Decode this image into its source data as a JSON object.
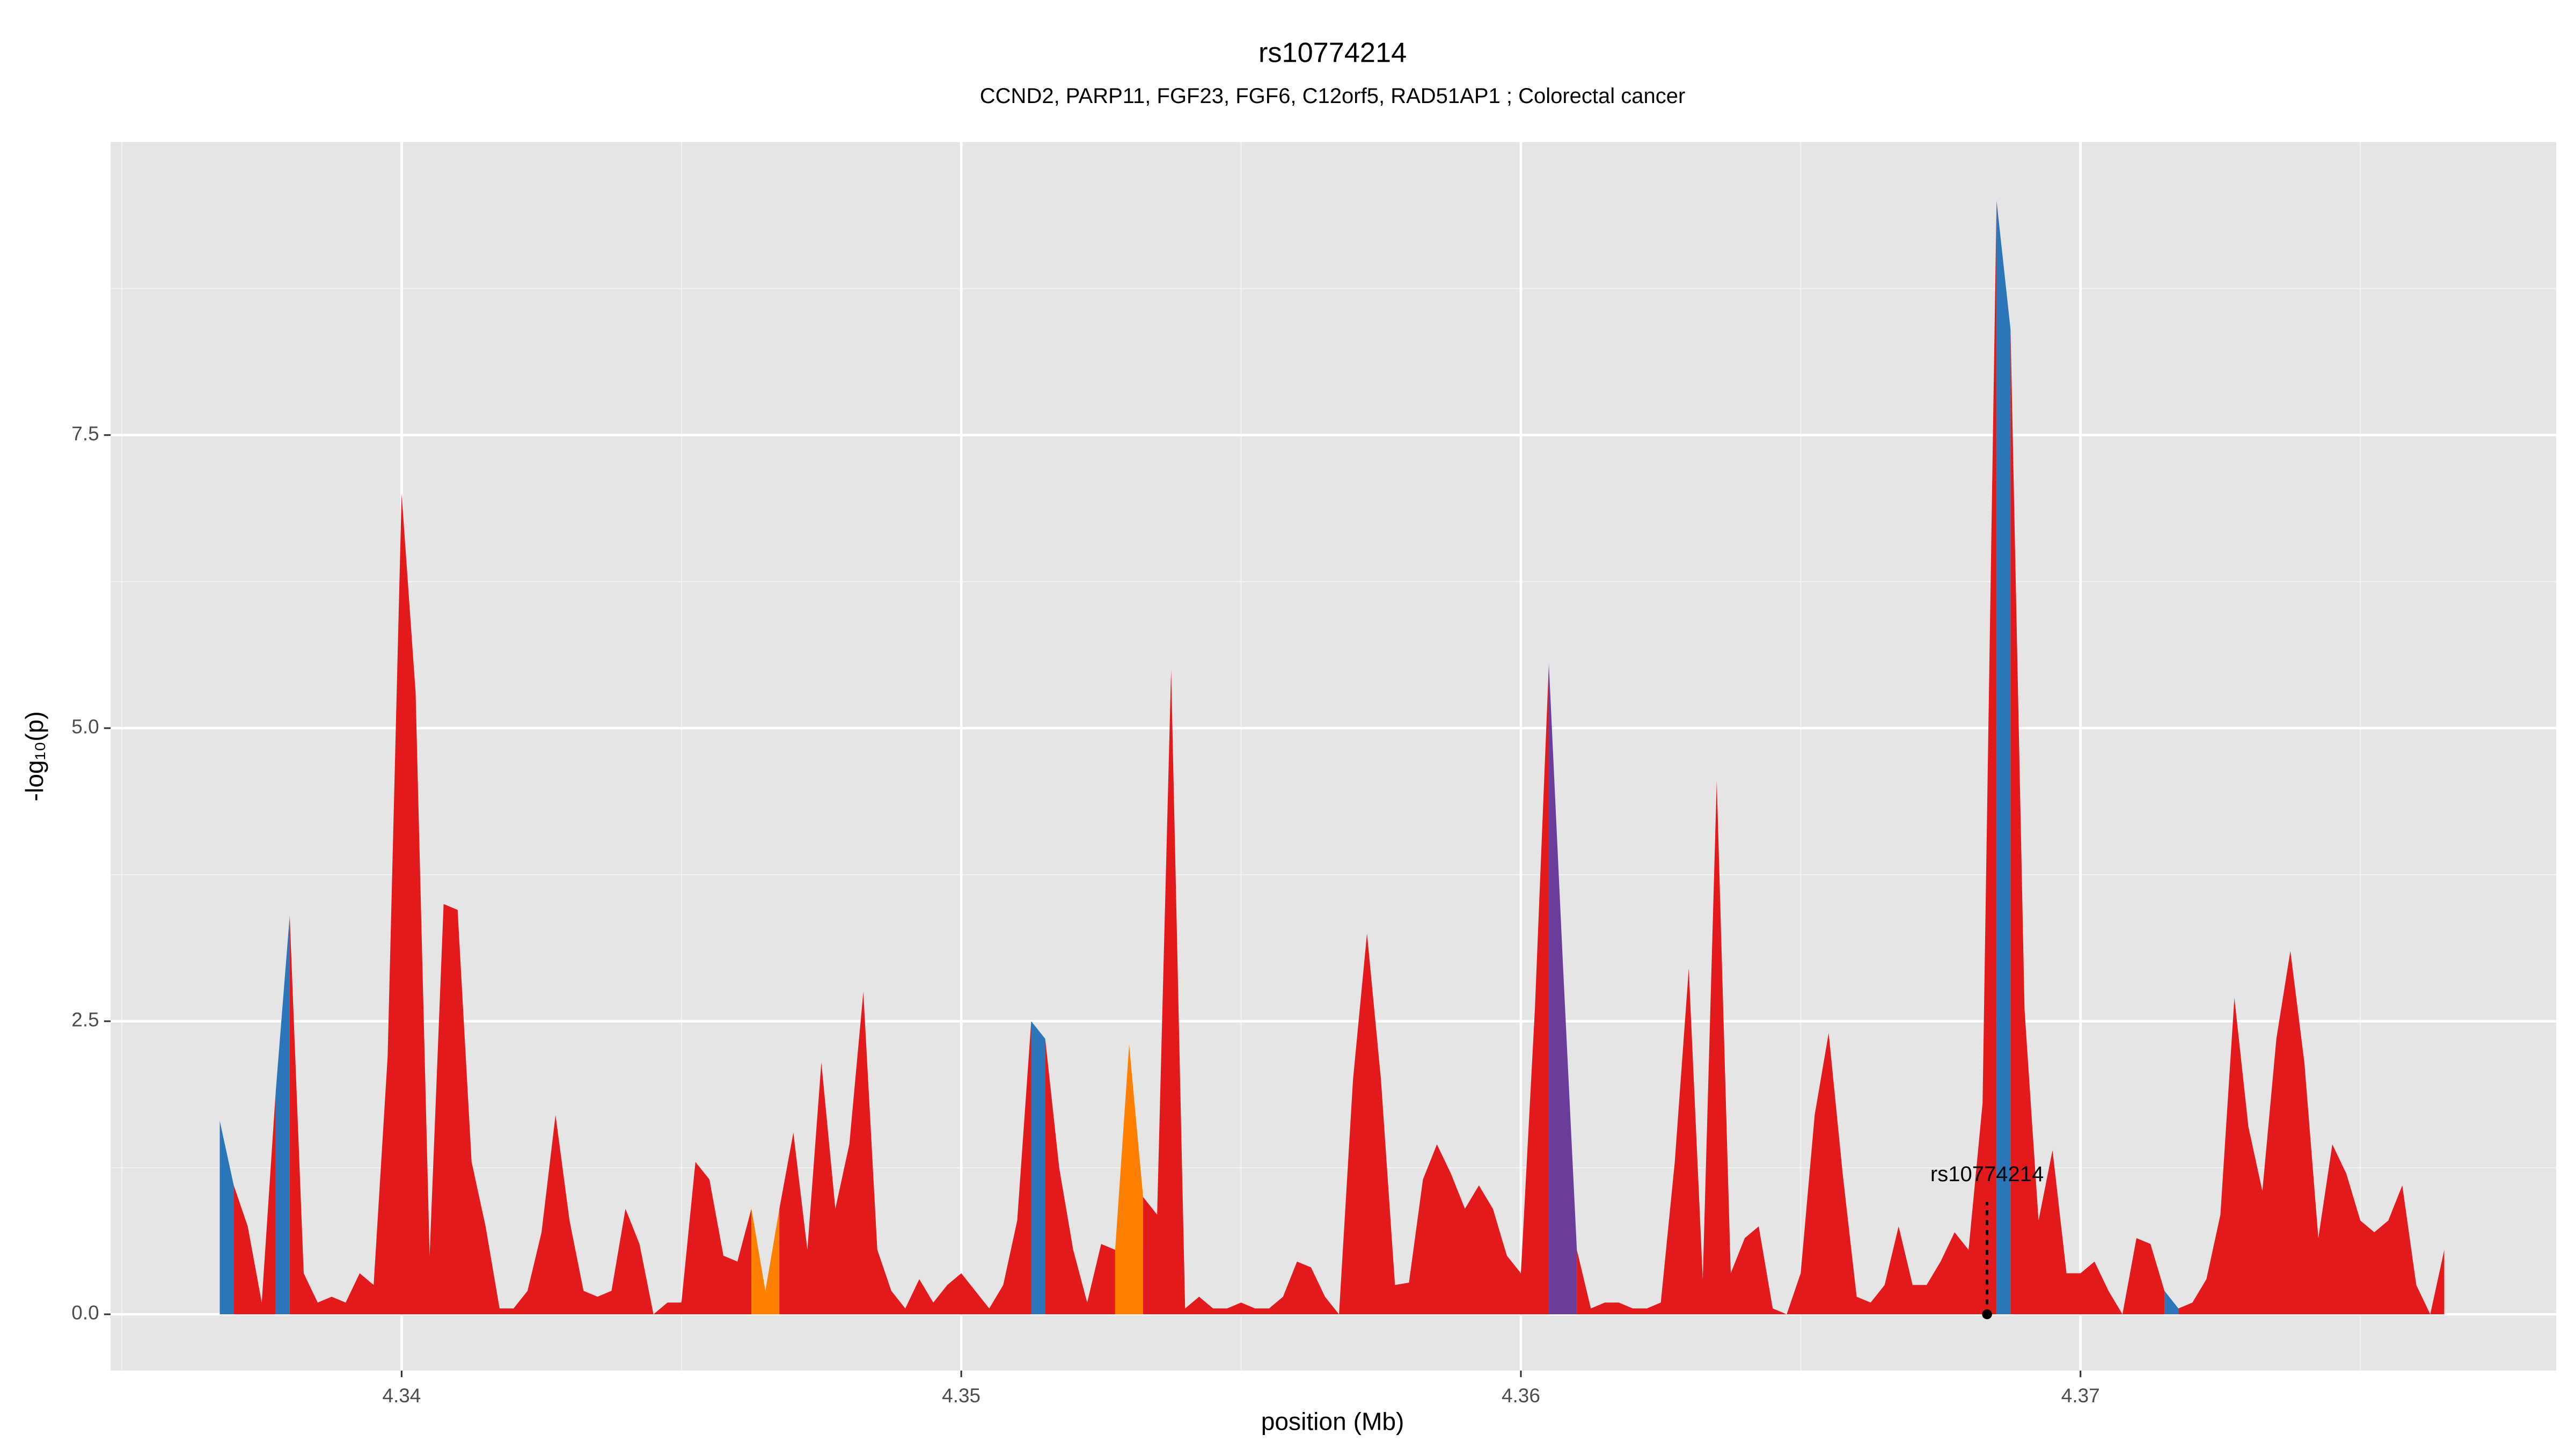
{
  "chart_data": {
    "type": "area",
    "title": "rs10774214",
    "subtitle": "CCND2, PARP11, FGF23, FGF6, C12orf5, RAD51AP1 ; Colorectal cancer",
    "x_label": "position (Mb)",
    "y_label": "-log₁₀(p)",
    "xlim": [
      4.3348,
      4.3785
    ],
    "xticks": [
      4.34,
      4.35,
      4.36,
      4.37
    ],
    "ylim": [
      -0.48,
      10.0
    ],
    "yticks": [
      {
        "value": 0,
        "label": "0.0"
      },
      {
        "value": 2.5,
        "label": "2.5"
      },
      {
        "value": 5,
        "label": "5.0"
      },
      {
        "value": 7.5,
        "label": "7.5"
      }
    ],
    "grid": true,
    "series": [
      {
        "color": "#2b76b8",
        "x": [
          4.33675,
          4.337
        ],
        "values": [
          1.65,
          1.1
        ]
      },
      {
        "color": "#e31a1c",
        "x": [
          4.337,
          4.33725,
          4.3375,
          4.33775
        ],
        "values": [
          1.1,
          0.75,
          0.1,
          1.9
        ]
      },
      {
        "color": "#2b76b8",
        "x": [
          4.33775,
          4.338
        ],
        "values": [
          1.9,
          3.4
        ]
      },
      {
        "color": "#e31a1c",
        "x": [
          4.338,
          4.33825,
          4.3385,
          4.33875,
          4.339,
          4.33925,
          4.3395,
          4.33975,
          4.34,
          4.34025,
          4.3405,
          4.34075,
          4.341,
          4.34125,
          4.3415,
          4.34175,
          4.342,
          4.34225,
          4.3425,
          4.34275,
          4.343,
          4.34325,
          4.3435,
          4.34375,
          4.344,
          4.34425,
          4.3445,
          4.34475,
          4.345,
          4.34525,
          4.3455,
          4.34575,
          4.346,
          4.34625
        ],
        "values": [
          3.4,
          0.35,
          0.1,
          0.15,
          0.1,
          0.35,
          0.25,
          2.2,
          7.0,
          5.3,
          0.5,
          3.5,
          3.45,
          1.3,
          0.75,
          0.05,
          0.05,
          0.2,
          0.7,
          1.7,
          0.8,
          0.2,
          0.15,
          0.2,
          0.9,
          0.6,
          0,
          0.1,
          0.1,
          1.3,
          1.15,
          0.5,
          0.45,
          0.9
        ]
      },
      {
        "color": "#ff7f00",
        "x": [
          4.34625,
          4.3465,
          4.34675
        ],
        "values": [
          0.9,
          0.2,
          0.9
        ]
      },
      {
        "color": "#e31a1c",
        "x": [
          4.34675,
          4.347,
          4.34725,
          4.3475,
          4.34775,
          4.348,
          4.34825,
          4.3485,
          4.34875,
          4.349,
          4.34925,
          4.3495,
          4.34975,
          4.35,
          4.35025,
          4.3505,
          4.35075,
          4.351,
          4.35125
        ],
        "values": [
          0.9,
          1.55,
          0.55,
          2.15,
          0.9,
          1.45,
          2.75,
          0.55,
          0.2,
          0.05,
          0.3,
          0.1,
          0.25,
          0.35,
          0.2,
          0.05,
          0.25,
          0.8,
          2.5
        ]
      },
      {
        "color": "#2b76b8",
        "x": [
          4.35125,
          4.3515
        ],
        "values": [
          2.5,
          2.35
        ]
      },
      {
        "color": "#e31a1c",
        "x": [
          4.3515,
          4.35175,
          4.352,
          4.35225,
          4.3525,
          4.35275
        ],
        "values": [
          2.35,
          1.25,
          0.55,
          0.1,
          0.6,
          0.55
        ]
      },
      {
        "color": "#ff7f00",
        "x": [
          4.35275,
          4.353,
          4.35325
        ],
        "values": [
          0.55,
          2.3,
          1.0
        ]
      },
      {
        "color": "#e31a1c",
        "x": [
          4.35325,
          4.3535,
          4.35375,
          4.354,
          4.35425,
          4.3545,
          4.35475,
          4.355,
          4.35525,
          4.3555,
          4.35575,
          4.356,
          4.35625,
          4.3565,
          4.35675,
          4.357,
          4.35725,
          4.3575,
          4.35775,
          4.358,
          4.35825,
          4.3585,
          4.35875,
          4.359,
          4.35925,
          4.3595,
          4.35975,
          4.36,
          4.36025,
          4.3605
        ],
        "values": [
          1.0,
          0.85,
          5.5,
          0.05,
          0.15,
          0.05,
          0.05,
          0.1,
          0.05,
          0.05,
          0.15,
          0.45,
          0.4,
          0.15,
          0,
          2.0,
          3.25,
          2.0,
          0.25,
          0.27,
          1.15,
          1.45,
          1.2,
          0.9,
          1.1,
          0.9,
          0.5,
          0.35,
          2.6,
          5.55
        ]
      },
      {
        "color": "#6a3d9a",
        "x": [
          4.3605,
          4.36075,
          4.361
        ],
        "values": [
          5.55,
          3.0,
          0.55
        ]
      },
      {
        "color": "#e31a1c",
        "x": [
          4.361,
          4.36125,
          4.3615,
          4.36175,
          4.362,
          4.36225,
          4.3625,
          4.36275,
          4.363,
          4.36325,
          4.3635,
          4.36375,
          4.364,
          4.36425,
          4.3645,
          4.36475,
          4.365,
          4.36525,
          4.3655,
          4.36575,
          4.366,
          4.36625,
          4.3665,
          4.36675,
          4.367,
          4.36725,
          4.3675,
          4.36775,
          4.368,
          4.36825,
          4.3685
        ],
        "values": [
          0.55,
          0.05,
          0.1,
          0.1,
          0.05,
          0.05,
          0.1,
          1.3,
          2.95,
          0.3,
          4.55,
          0.35,
          0.65,
          0.75,
          0.05,
          0,
          0.35,
          1.7,
          2.4,
          1.2,
          0.15,
          0.1,
          0.25,
          0.75,
          0.25,
          0.25,
          0.45,
          0.7,
          0.55,
          1.8,
          9.5
        ]
      },
      {
        "color": "#2b76b8",
        "x": [
          4.3685,
          4.36875
        ],
        "values": [
          9.5,
          8.4
        ]
      },
      {
        "color": "#e31a1c",
        "x": [
          4.36875,
          4.369,
          4.36925,
          4.3695,
          4.36975,
          4.37,
          4.37025,
          4.3705,
          4.37075,
          4.371,
          4.37125,
          4.3715
        ],
        "values": [
          8.4,
          2.6,
          0.8,
          1.4,
          0.35,
          0.35,
          0.45,
          0.2,
          0,
          0.65,
          0.6,
          0.2
        ]
      },
      {
        "color": "#2b76b8",
        "x": [
          4.3715,
          4.37175
        ],
        "values": [
          0.2,
          0.05
        ]
      },
      {
        "color": "#e31a1c",
        "x": [
          4.37175,
          4.372,
          4.37225,
          4.3725,
          4.37275,
          4.373,
          4.37325,
          4.3735,
          4.37375,
          4.374,
          4.37425,
          4.3745,
          4.37475,
          4.375,
          4.37525,
          4.3755,
          4.37575,
          4.376,
          4.37625,
          4.3765
        ],
        "values": [
          0.05,
          0.1,
          0.3,
          0.85,
          2.7,
          1.6,
          1.05,
          2.35,
          3.1,
          2.15,
          0.65,
          1.45,
          1.2,
          0.8,
          0.7,
          0.8,
          1.1,
          0.25,
          0,
          0.55
        ]
      }
    ],
    "annotation": {
      "text": "rs10774214",
      "x": 4.36833,
      "y": 0
    }
  }
}
